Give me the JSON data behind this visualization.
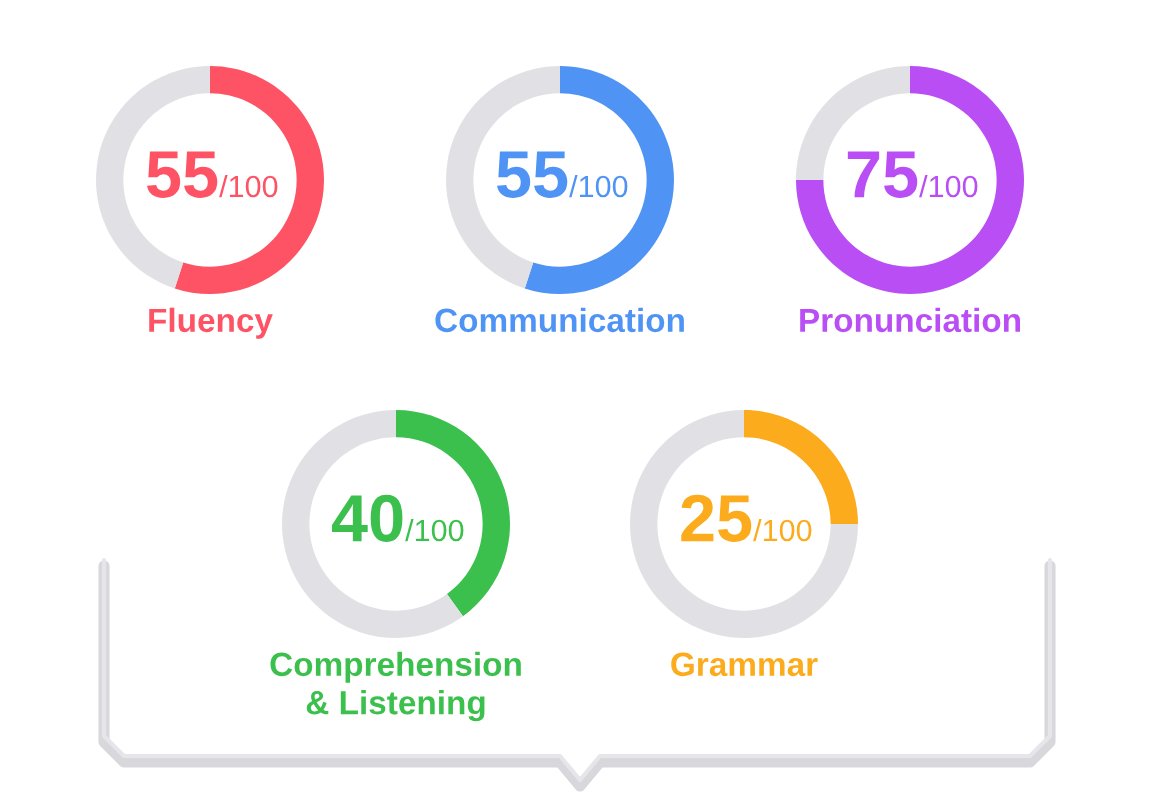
{
  "chart_data": [
    {
      "type": "donut",
      "title": "Fluency",
      "categories": [
        null,
        null
      ],
      "values": [
        55,
        45
      ],
      "colors": [
        "#fd5364",
        "#e1e1e5"
      ],
      "annotations": [
        "55",
        "/100"
      ]
    },
    {
      "type": "donut",
      "title": "Communication",
      "categories": [
        null,
        null
      ],
      "values": [
        55,
        45
      ],
      "colors": [
        "#4f94f4",
        "#e1e1e5"
      ],
      "annotations": [
        "55",
        "/100"
      ]
    },
    {
      "type": "donut",
      "title": "Pronunciation",
      "categories": [
        null,
        null
      ],
      "values": [
        75,
        25
      ],
      "colors": [
        "#b94ef5",
        "#e1e1e5"
      ],
      "annotations": [
        "75",
        "/100"
      ]
    },
    {
      "type": "donut",
      "title": "Comprehension\n& Listening",
      "categories": [
        null,
        null
      ],
      "values": [
        40,
        60
      ],
      "colors": [
        "#3cc04d",
        "#e1e1e5"
      ],
      "annotations": [
        "40",
        "/100"
      ]
    },
    {
      "type": "donut",
      "title": "Grammar",
      "categories": [
        null,
        null
      ],
      "values": [
        25,
        75
      ],
      "colors": [
        "#fbab1b",
        "#e1e1e5"
      ],
      "annotations": [
        "25",
        "/100"
      ]
    }
  ]
}
